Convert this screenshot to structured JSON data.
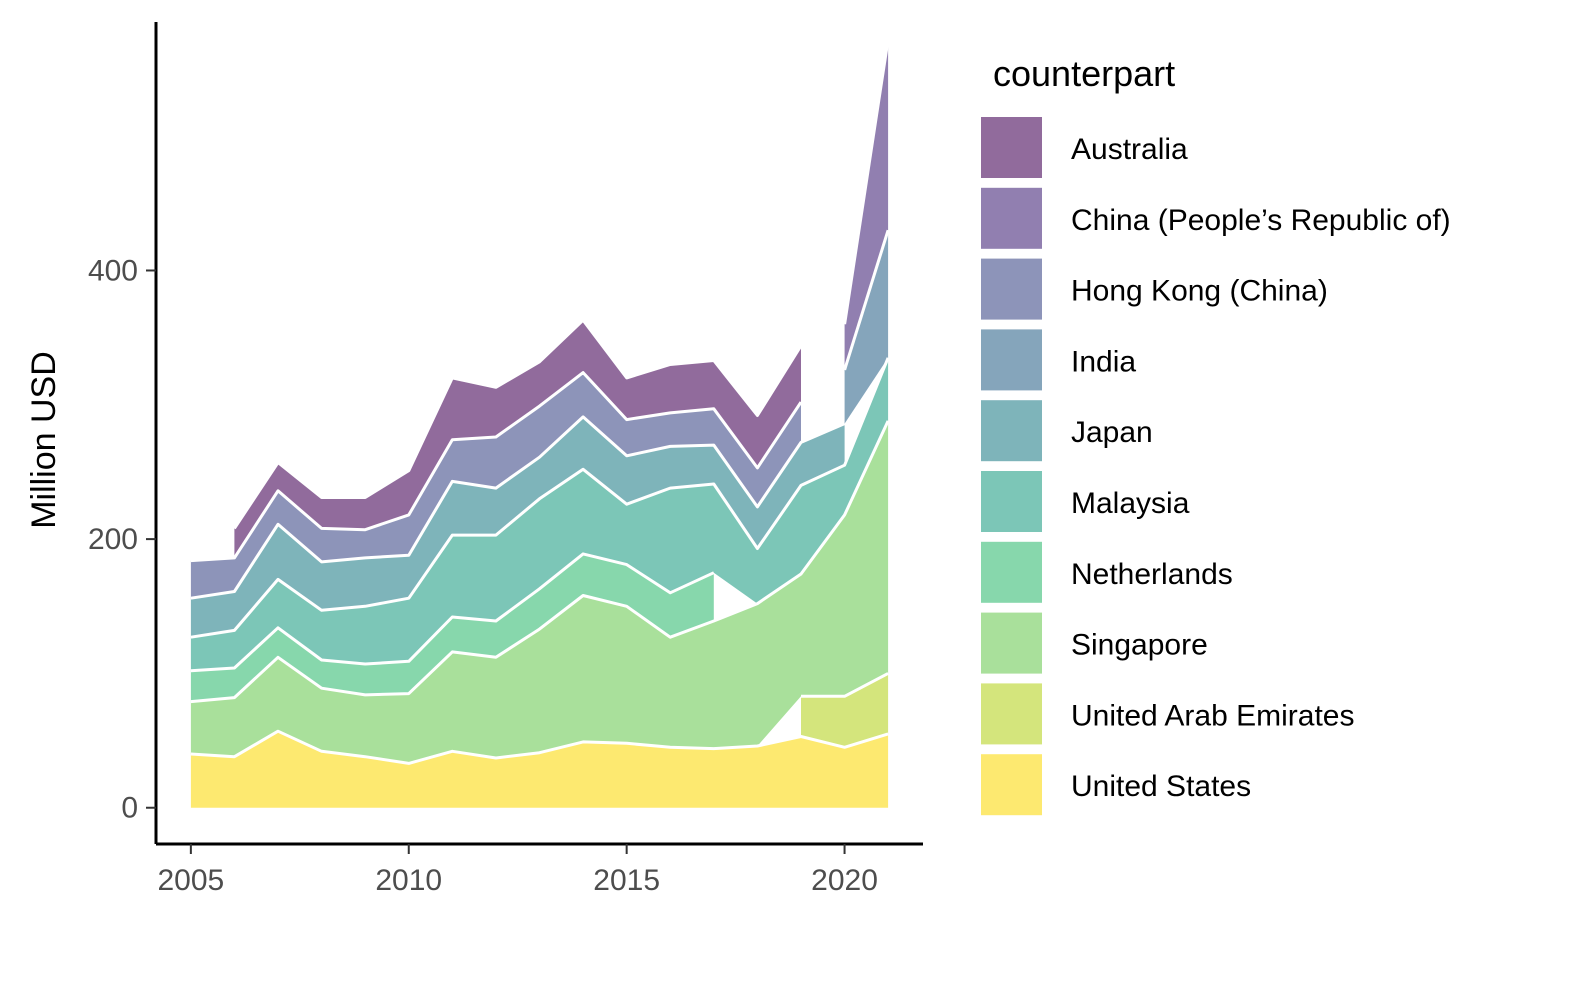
{
  "chart_data": {
    "type": "area",
    "stacked": true,
    "title": "",
    "xlabel": "",
    "ylabel": "Million USD",
    "xlim": [
      2004.2,
      2021.8
    ],
    "ylim": [
      -27,
      585
    ],
    "x_ticks": [
      2005,
      2010,
      2015,
      2020
    ],
    "y_ticks": [
      0,
      200,
      400
    ],
    "grid": false,
    "legend_title": "counterpart",
    "legend_position": "right",
    "x": [
      2005,
      2006,
      2007,
      2008,
      2009,
      2010,
      2011,
      2012,
      2013,
      2014,
      2015,
      2016,
      2017,
      2018,
      2019,
      2020,
      2021
    ],
    "series": [
      {
        "name": "United States",
        "color": "#FDE970",
        "values": [
          40,
          38,
          57,
          42,
          38,
          33,
          42,
          37,
          41,
          49,
          48,
          45,
          44,
          46,
          53,
          45,
          55
        ]
      },
      {
        "name": "United Arab Emirates",
        "color": "#D4E57C",
        "values": [
          null,
          null,
          null,
          null,
          null,
          null,
          null,
          null,
          null,
          null,
          null,
          null,
          null,
          null,
          30,
          38,
          45
        ]
      },
      {
        "name": "Singapore",
        "color": "#A9E09B",
        "values": [
          39,
          44,
          55,
          47,
          46,
          52,
          74,
          75,
          92,
          109,
          102,
          82,
          95,
          106,
          91,
          135,
          188
        ]
      },
      {
        "name": "Netherlands",
        "color": "#87D7AC",
        "values": [
          23,
          22,
          22,
          21,
          23,
          24,
          26,
          27,
          30,
          31,
          31,
          33,
          36,
          null,
          null,
          null,
          null
        ]
      },
      {
        "name": "Malaysia",
        "color": "#7CC6B7",
        "values": [
          25,
          28,
          36,
          37,
          43,
          47,
          61,
          64,
          67,
          63,
          45,
          78,
          66,
          41,
          66,
          37,
          47
        ]
      },
      {
        "name": "Japan",
        "color": "#7EB4BA",
        "values": [
          29,
          29,
          41,
          36,
          36,
          32,
          40,
          35,
          31,
          39,
          36,
          31,
          29,
          31,
          32,
          31,
          null
        ]
      },
      {
        "name": "India",
        "color": "#85A5BB",
        "values": [
          null,
          null,
          null,
          null,
          null,
          null,
          null,
          null,
          null,
          null,
          null,
          null,
          null,
          null,
          null,
          40,
          95
        ]
      },
      {
        "name": "Hong Kong (China)",
        "color": "#8D94B9",
        "values": [
          28,
          25,
          25,
          25,
          21,
          30,
          31,
          38,
          38,
          33,
          27,
          25,
          27,
          29,
          30,
          null,
          null
        ]
      },
      {
        "name": "China (People’s Republic of)",
        "color": "#917FB0",
        "values": [
          null,
          null,
          null,
          null,
          null,
          null,
          null,
          null,
          null,
          null,
          null,
          null,
          null,
          null,
          null,
          34,
          142
        ]
      },
      {
        "name": "Australia",
        "color": "#916B9C",
        "values": [
          null,
          22,
          21,
          23,
          24,
          33,
          46,
          37,
          33,
          39,
          31,
          36,
          36,
          39,
          42,
          null,
          null
        ]
      }
    ]
  }
}
